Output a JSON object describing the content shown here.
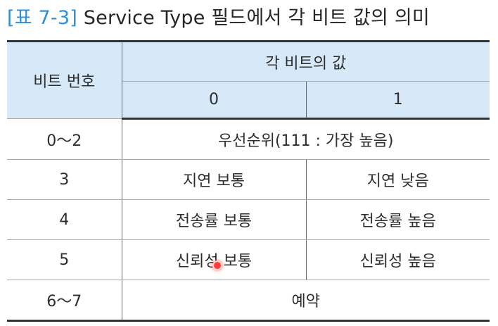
{
  "title": {
    "tag": "[표 7-3]",
    "text": "Service Type 필드에서 각 비트 값의 의미"
  },
  "table": {
    "header": {
      "bit_number": "비트 번호",
      "bit_value": "각 비트의 값",
      "value_0": "0",
      "value_1": "1"
    },
    "rows": [
      {
        "bit": "0～2",
        "merged": "우선순위(111 : 가장 높음)"
      },
      {
        "bit": "3",
        "v0": "지연 보통",
        "v1": "지연 낮음"
      },
      {
        "bit": "4",
        "v0": "전송률 보통",
        "v1": "전송률 높음"
      },
      {
        "bit": "5",
        "v0": "신뢰성 보통",
        "v1": "신뢰성 높음"
      },
      {
        "bit": "6～7",
        "merged": "예약"
      }
    ]
  }
}
